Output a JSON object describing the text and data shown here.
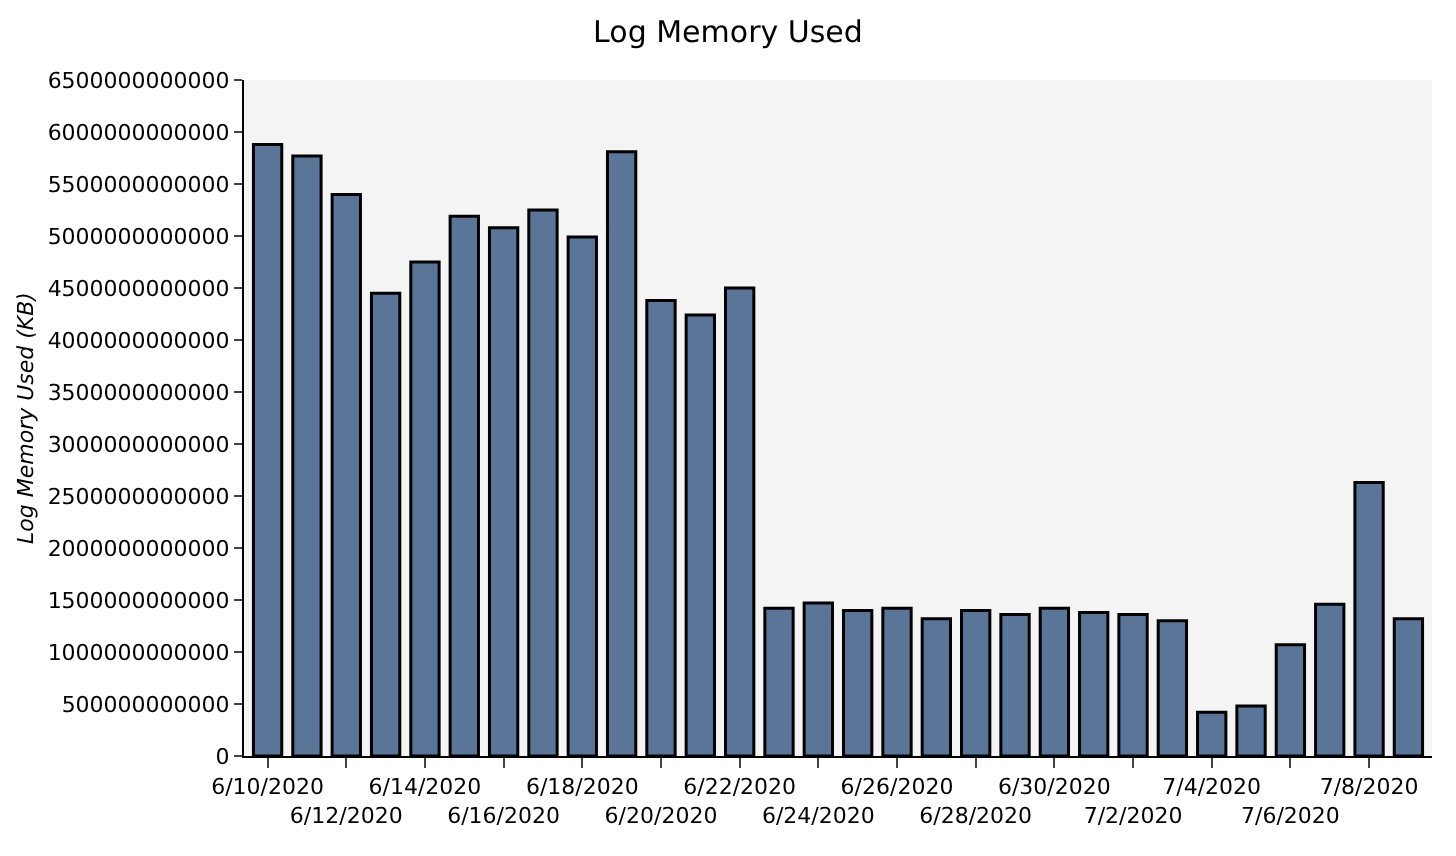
{
  "chart_data": {
    "type": "bar",
    "title": "Log Memory Used",
    "ylabel": "Log Memory Used (KB)",
    "categories": [
      "6/10/2020",
      null,
      "6/12/2020",
      null,
      "6/14/2020",
      null,
      "6/16/2020",
      null,
      "6/18/2020",
      null,
      "6/20/2020",
      null,
      "6/22/2020",
      null,
      "6/24/2020",
      null,
      "6/26/2020",
      null,
      "6/28/2020",
      null,
      "6/30/2020",
      null,
      "7/2/2020",
      null,
      "7/4/2020",
      null,
      "7/6/2020",
      null,
      "7/8/2020",
      null
    ],
    "values": [
      5880000000000,
      5770000000000,
      5400000000000,
      4450000000000,
      4750000000000,
      5190000000000,
      5080000000000,
      5250000000000,
      4990000000000,
      5810000000000,
      4380000000000,
      4240000000000,
      4500000000000,
      1420000000000,
      1470000000000,
      1400000000000,
      1420000000000,
      1320000000000,
      1400000000000,
      1360000000000,
      1420000000000,
      1380000000000,
      1360000000000,
      1300000000000,
      420000000000,
      480000000000,
      1070000000000,
      1460000000000,
      2630000000000,
      1320000000000
    ],
    "color": "#5b7599",
    "ylim": [
      0,
      6500000000000
    ],
    "yticks": [
      0,
      500000000000,
      1000000000000,
      1500000000000,
      2000000000000,
      2500000000000,
      3000000000000,
      3500000000000,
      4000000000000,
      4500000000000,
      5000000000000,
      5500000000000,
      6000000000000,
      6500000000000
    ],
    "grid": false,
    "legend": false
  }
}
